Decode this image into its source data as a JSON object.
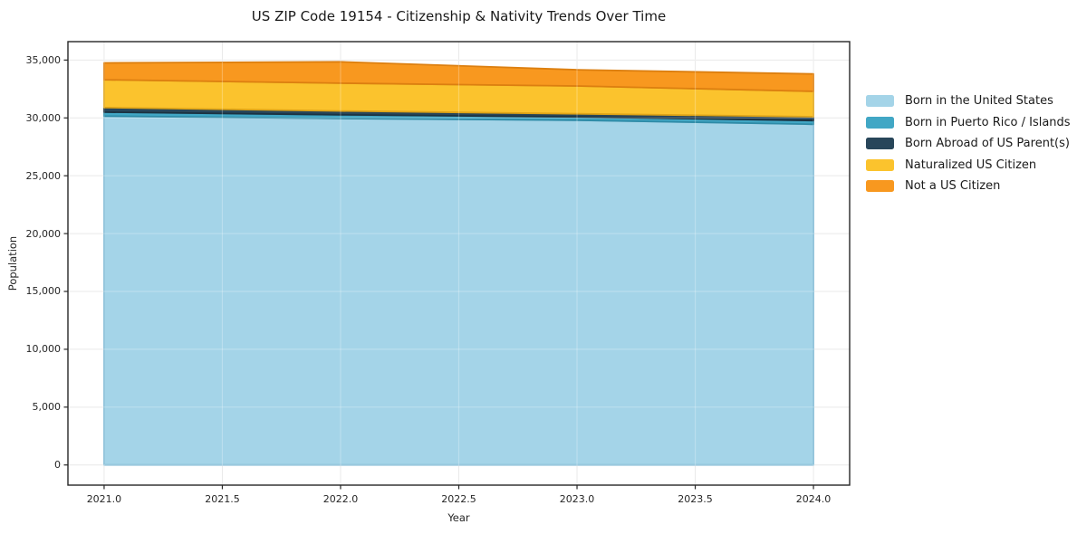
{
  "chart_data": {
    "type": "area",
    "stacked": true,
    "title": "US ZIP Code 19154 - Citizenship & Nativity Trends Over Time",
    "xlabel": "Year",
    "ylabel": "Population",
    "x": [
      2021,
      2022,
      2023,
      2024
    ],
    "series": [
      {
        "name": "Born in the United States",
        "color": "#A4D4E8",
        "edge": "#7FB9D4",
        "values": [
          30150,
          29950,
          29800,
          29450
        ]
      },
      {
        "name": "Born in Puerto Rico / Islands",
        "color": "#41A7C5",
        "edge": "#2E8BA7",
        "values": [
          350,
          320,
          280,
          320
        ]
      },
      {
        "name": "Born Abroad of US Parent(s)",
        "color": "#28465A",
        "edge": "#1B3342",
        "values": [
          400,
          330,
          280,
          330
        ]
      },
      {
        "name": "Naturalized US Citizen",
        "color": "#FBC32D",
        "edge": "#DFA417",
        "values": [
          2400,
          2400,
          2400,
          2200
        ]
      },
      {
        "name": "Not a US Citizen",
        "color": "#F8981F",
        "edge": "#DC7F10",
        "values": [
          1450,
          1850,
          1400,
          1500
        ]
      }
    ],
    "xticks": [
      2021.0,
      2021.5,
      2022.0,
      2022.5,
      2023.0,
      2023.5,
      2024.0
    ],
    "yticks": [
      0,
      5000,
      10000,
      15000,
      20000,
      25000,
      30000,
      35000
    ],
    "xlim": [
      2020.847,
      2024.153
    ],
    "ylim": [
      -1742,
      36592
    ],
    "grid": true,
    "legend_position": "right-outside-top"
  },
  "colors": {
    "background": "#FFFFFF",
    "grid": "#E3E3E3",
    "grid_overlay": "rgba(255,255,255,0.25)",
    "spine": "#262626",
    "text": "#262626"
  }
}
